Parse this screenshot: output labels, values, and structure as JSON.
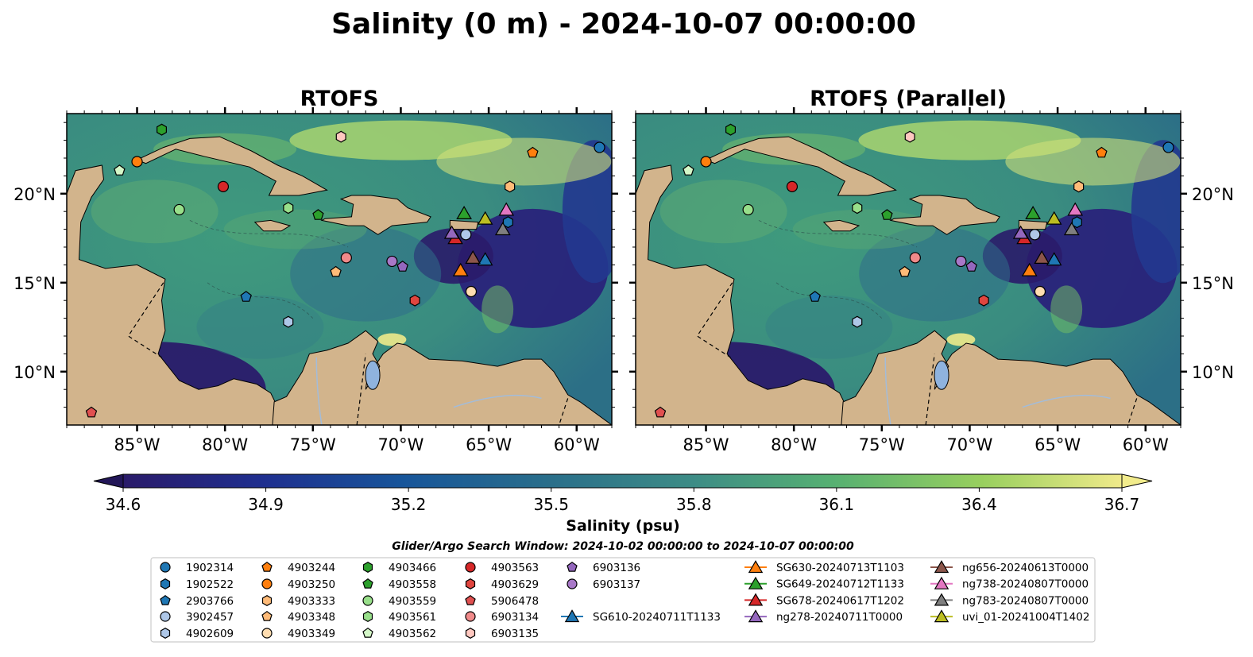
{
  "figure": {
    "suptitle": "Salinity (0 m) - 2024-10-07 00:00:00",
    "colorbar_label": "Salinity (psu)",
    "search_window": "Glider/Argo Search Window: 2024-10-02 00:00:00 to 2024-10-07 00:00:00"
  },
  "chart_data": {
    "type": "heatmap",
    "panels": [
      {
        "title": "RTOFS"
      },
      {
        "title": "RTOFS (Parallel)"
      }
    ],
    "variable": "Salinity",
    "units": "psu",
    "depth": "0 m",
    "lon_range": [
      -89,
      -58
    ],
    "lat_range": [
      7,
      24.5
    ],
    "x_ticks": [
      -85,
      -80,
      -75,
      -70,
      -65,
      -60
    ],
    "x_tick_labels": [
      "85°W",
      "80°W",
      "75°W",
      "70°W",
      "65°W",
      "60°W"
    ],
    "y_ticks": [
      10,
      15,
      20
    ],
    "y_tick_labels": [
      "10°N",
      "15°N",
      "20°N"
    ],
    "colorbar": {
      "min": 34.6,
      "max": 36.7,
      "ticks": [
        34.6,
        34.9,
        35.2,
        35.5,
        35.8,
        36.1,
        36.4,
        36.7
      ],
      "tick_labels": [
        "34.6",
        "34.9",
        "35.2",
        "35.5",
        "35.8",
        "36.1",
        "36.4",
        "36.7"
      ],
      "colormap": "haline",
      "extend": "both"
    },
    "argo_floats": [
      {
        "id": "1902314",
        "lon": -58.7,
        "lat": 22.6,
        "marker": "circle",
        "color": "#1f77b4"
      },
      {
        "id": "1902522",
        "lon": -63.9,
        "lat": 18.4,
        "marker": "hexagon",
        "color": "#1f77b4"
      },
      {
        "id": "2903766",
        "lon": -78.8,
        "lat": 14.2,
        "marker": "pentagon",
        "color": "#1f77b4"
      },
      {
        "id": "3902457",
        "lon": -66.3,
        "lat": 17.7,
        "marker": "circle",
        "color": "#aec7e8"
      },
      {
        "id": "4902609",
        "lon": -76.4,
        "lat": 12.8,
        "marker": "hexagon",
        "color": "#aec7e8"
      },
      {
        "id": "4903244",
        "lon": -62.5,
        "lat": 22.3,
        "marker": "pentagon",
        "color": "#ff7f0e"
      },
      {
        "id": "4903250",
        "lon": -85.0,
        "lat": 21.8,
        "marker": "circle",
        "color": "#ff7f0e"
      },
      {
        "id": "4903333",
        "lon": -63.8,
        "lat": 20.4,
        "marker": "hexagon",
        "color": "#ffbb78"
      },
      {
        "id": "4903348",
        "lon": -73.7,
        "lat": 15.6,
        "marker": "pentagon",
        "color": "#ffbb78"
      },
      {
        "id": "4903349",
        "lon": -66.0,
        "lat": 14.5,
        "marker": "circle",
        "color": "#ffddb0"
      },
      {
        "id": "4903466",
        "lon": -83.6,
        "lat": 23.6,
        "marker": "hexagon",
        "color": "#2ca02c"
      },
      {
        "id": "4903558",
        "lon": -74.7,
        "lat": 18.8,
        "marker": "pentagon",
        "color": "#2ca02c"
      },
      {
        "id": "4903559",
        "lon": -82.6,
        "lat": 19.1,
        "marker": "circle",
        "color": "#98df8a"
      },
      {
        "id": "4903561",
        "lon": -76.4,
        "lat": 19.2,
        "marker": "hexagon",
        "color": "#98df8a"
      },
      {
        "id": "4903562",
        "lon": -86.0,
        "lat": 21.3,
        "marker": "pentagon",
        "color": "#d4f7c8"
      },
      {
        "id": "4903563",
        "lon": -80.1,
        "lat": 20.4,
        "marker": "circle",
        "color": "#d62728"
      },
      {
        "id": "4903629",
        "lon": -69.2,
        "lat": 14.0,
        "marker": "hexagon",
        "color": "#e0453f"
      },
      {
        "id": "5906478",
        "lon": -87.6,
        "lat": 7.7,
        "marker": "pentagon",
        "color": "#e05050"
      },
      {
        "id": "6903134",
        "lon": -73.1,
        "lat": 16.4,
        "marker": "circle",
        "color": "#f08a8a"
      },
      {
        "id": "6903135",
        "lon": -73.4,
        "lat": 23.2,
        "marker": "hexagon",
        "color": "#ffc8c0"
      },
      {
        "id": "6903136",
        "lon": -69.9,
        "lat": 15.9,
        "marker": "pentagon",
        "color": "#9467bd"
      },
      {
        "id": "6903137",
        "lon": -70.5,
        "lat": 16.2,
        "marker": "circle",
        "color": "#a878c8"
      }
    ],
    "gliders": [
      {
        "id": "SG610-20240711T1133",
        "lon": -65.2,
        "lat": 16.3,
        "color": "#1f77b4"
      },
      {
        "id": "SG630-20240713T1103",
        "lon": -66.6,
        "lat": 15.7,
        "color": "#ff7f0e"
      },
      {
        "id": "SG649-20240712T1133",
        "lon": -66.4,
        "lat": 18.9,
        "color": "#2ca02c"
      },
      {
        "id": "SG678-20240617T1202",
        "lon": -66.9,
        "lat": 17.5,
        "color": "#d62728"
      },
      {
        "id": "ng278-20240711T0000",
        "lon": -67.1,
        "lat": 17.8,
        "color": "#9467bd"
      },
      {
        "id": "ng656-20240613T0000",
        "lon": -65.9,
        "lat": 16.4,
        "color": "#8c564b"
      },
      {
        "id": "ng738-20240807T0000",
        "lon": -64.0,
        "lat": 19.1,
        "color": "#e377c2"
      },
      {
        "id": "ng783-20240807T0000",
        "lon": -64.2,
        "lat": 18.0,
        "color": "#7f7f7f"
      },
      {
        "id": "uvi_01-20241004T1402",
        "lon": -65.2,
        "lat": 18.6,
        "color": "#bcbd22"
      }
    ]
  }
}
